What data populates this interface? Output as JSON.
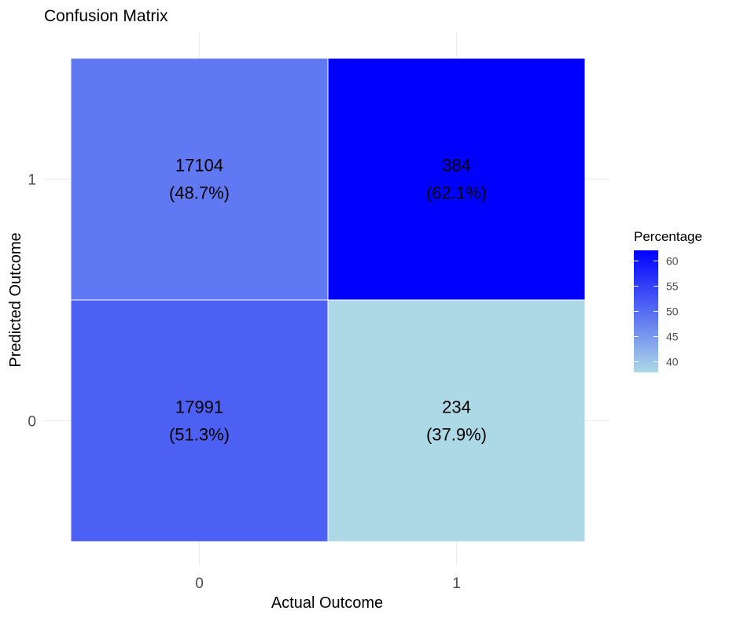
{
  "chart_data": {
    "type": "heatmap",
    "title": "Confusion Matrix",
    "xlabel": "Actual Outcome",
    "ylabel": "Predicted Outcome",
    "x_categories": [
      "0",
      "1"
    ],
    "y_categories": [
      "0",
      "1"
    ],
    "cells": [
      {
        "actual": "0",
        "predicted": "1",
        "count": "17104",
        "percent_label": "(48.7%)",
        "percentage": 48.7
      },
      {
        "actual": "1",
        "predicted": "1",
        "count": "384",
        "percent_label": "(62.1%)",
        "percentage": 62.1
      },
      {
        "actual": "0",
        "predicted": "0",
        "count": "17991",
        "percent_label": "(51.3%)",
        "percentage": 51.3
      },
      {
        "actual": "1",
        "predicted": "0",
        "count": "234",
        "percent_label": "(37.9%)",
        "percentage": 37.9
      }
    ],
    "color_scale": {
      "low": "#add8e6",
      "high": "#0000ff",
      "domain": [
        37.9,
        62.1
      ]
    },
    "legend": {
      "title": "Percentage",
      "ticks": [
        "40",
        "45",
        "50",
        "55",
        "60"
      ],
      "position": "right"
    },
    "grid": true
  }
}
